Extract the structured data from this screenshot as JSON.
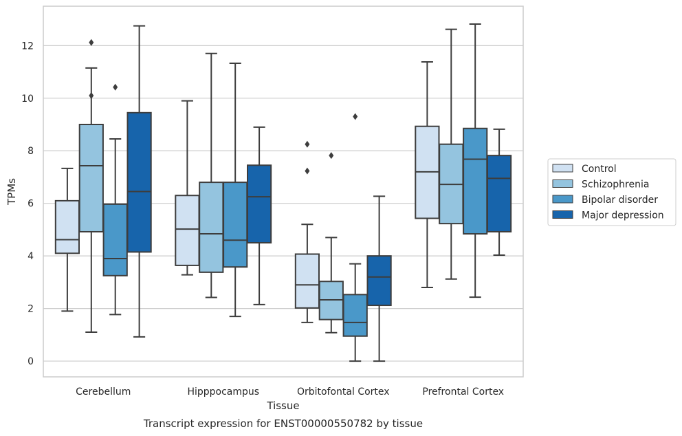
{
  "chart_data": {
    "type": "box",
    "title": "",
    "caption": "Transcript expression for ENST00000550782 by tissue",
    "xlabel": "Tissue",
    "ylabel": "TPMs",
    "ylim": [
      -0.6,
      13.5
    ],
    "yticks": [
      0,
      2,
      4,
      6,
      8,
      10,
      12
    ],
    "grid": true,
    "legend_position": "right",
    "categories": [
      "Cerebellum",
      "Hipppocampus",
      "Orbitofontal Cortex",
      "Prefrontal Cortex"
    ],
    "series": [
      {
        "name": "Control",
        "color": "#d0e1f2",
        "boxes": [
          {
            "whisker_low": 1.9,
            "q1": 4.1,
            "median": 4.62,
            "q3": 6.1,
            "whisker_high": 7.33,
            "outliers": []
          },
          {
            "whisker_low": 3.28,
            "q1": 3.64,
            "median": 5.02,
            "q3": 6.3,
            "whisker_high": 9.9,
            "outliers": []
          },
          {
            "whisker_low": 1.47,
            "q1": 2.02,
            "median": 2.9,
            "q3": 4.07,
            "whisker_high": 5.2,
            "outliers": [
              7.23,
              8.25
            ]
          },
          {
            "whisker_low": 2.8,
            "q1": 5.43,
            "median": 7.2,
            "q3": 8.93,
            "whisker_high": 11.38,
            "outliers": []
          }
        ]
      },
      {
        "name": "Schizophrenia",
        "color": "#94c4df",
        "boxes": [
          {
            "whisker_low": 1.1,
            "q1": 4.92,
            "median": 7.43,
            "q3": 9.0,
            "whisker_high": 11.15,
            "outliers": [
              10.1,
              12.12
            ]
          },
          {
            "whisker_low": 2.42,
            "q1": 3.38,
            "median": 4.84,
            "q3": 6.8,
            "whisker_high": 11.7,
            "outliers": []
          },
          {
            "whisker_low": 1.08,
            "q1": 1.58,
            "median": 2.33,
            "q3": 3.03,
            "whisker_high": 4.7,
            "outliers": [
              7.82
            ]
          },
          {
            "whisker_low": 3.12,
            "q1": 5.23,
            "median": 6.72,
            "q3": 8.25,
            "whisker_high": 12.62,
            "outliers": []
          }
        ]
      },
      {
        "name": "Bipolar disorder",
        "color": "#4a98c9",
        "boxes": [
          {
            "whisker_low": 1.77,
            "q1": 3.25,
            "median": 3.9,
            "q3": 5.97,
            "whisker_high": 8.45,
            "outliers": [
              10.42
            ]
          },
          {
            "whisker_low": 1.7,
            "q1": 3.58,
            "median": 4.6,
            "q3": 6.8,
            "whisker_high": 11.33,
            "outliers": []
          },
          {
            "whisker_low": 0.0,
            "q1": 0.95,
            "median": 1.47,
            "q3": 2.53,
            "whisker_high": 3.7,
            "outliers": [
              9.3
            ]
          },
          {
            "whisker_low": 2.43,
            "q1": 4.84,
            "median": 7.68,
            "q3": 8.85,
            "whisker_high": 12.82,
            "outliers": []
          }
        ]
      },
      {
        "name": "Major depression",
        "color": "#1764ab",
        "boxes": [
          {
            "whisker_low": 0.92,
            "q1": 4.15,
            "median": 6.45,
            "q3": 9.45,
            "whisker_high": 12.75,
            "outliers": []
          },
          {
            "whisker_low": 2.15,
            "q1": 4.5,
            "median": 6.25,
            "q3": 7.45,
            "whisker_high": 8.9,
            "outliers": []
          },
          {
            "whisker_low": 0.0,
            "q1": 2.12,
            "median": 3.2,
            "q3": 4.0,
            "whisker_high": 6.27,
            "outliers": []
          },
          {
            "whisker_low": 4.03,
            "q1": 4.92,
            "median": 6.95,
            "q3": 7.82,
            "whisker_high": 8.82,
            "outliers": []
          }
        ]
      }
    ]
  }
}
